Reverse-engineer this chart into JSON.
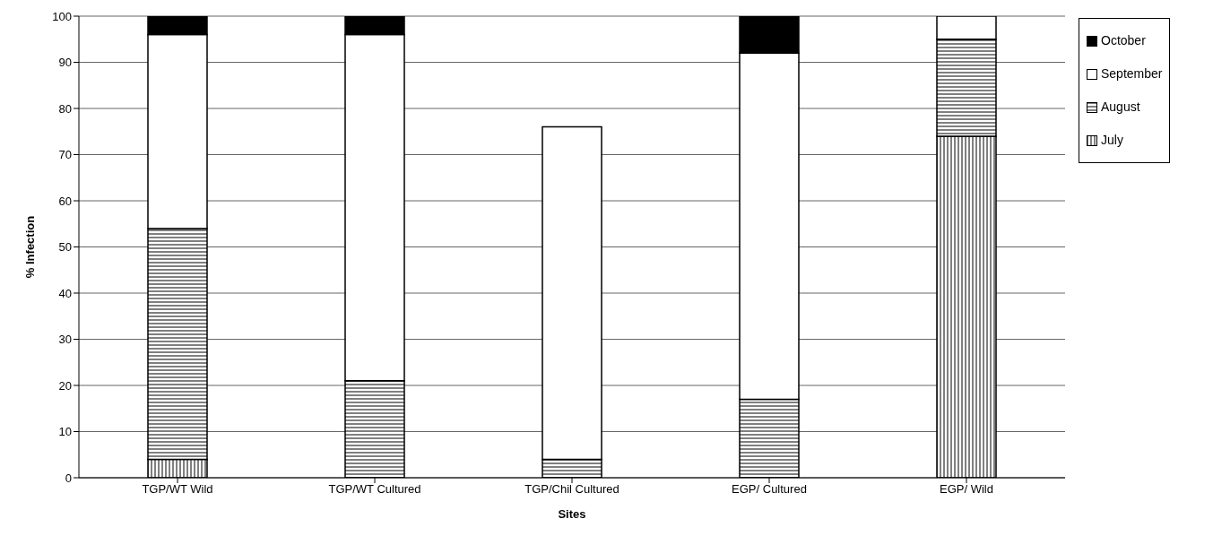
{
  "chart_data": {
    "type": "bar",
    "stacked": true,
    "xlabel": "Sites",
    "ylabel": "% Infection",
    "categories": [
      "TGP/WT Wild",
      "TGP/WT Cultured",
      "TGP/Chil Cultured",
      "EGP/ Cultured",
      "EGP/ Wild"
    ],
    "series": [
      {
        "name": "July",
        "color": "#000000",
        "values": [
          4,
          null,
          null,
          null,
          74
        ]
      },
      {
        "name": "August",
        "color": "#000000",
        "values": [
          50,
          21,
          4,
          17,
          21
        ]
      },
      {
        "name": "September",
        "color": "#ffffff",
        "values": [
          42,
          75,
          72,
          75,
          5
        ]
      },
      {
        "name": "October",
        "color": "#000000",
        "values": [
          4,
          4,
          null,
          8,
          null
        ]
      }
    ],
    "ylim": [
      0,
      100
    ],
    "yticks": [
      0,
      10,
      20,
      30,
      40,
      50,
      60,
      70,
      80,
      90,
      100
    ],
    "grid": "y",
    "legend": "top right"
  }
}
